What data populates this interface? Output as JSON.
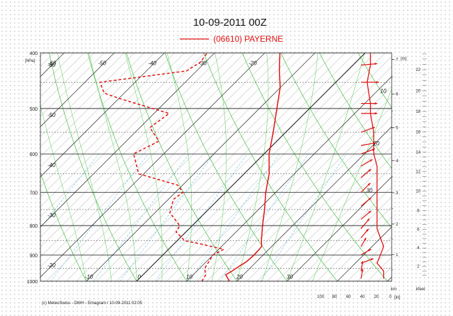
{
  "chart_data": {
    "type": "line",
    "title": "10-09-2011  00Z",
    "station_legend": "(06610)  PAYERNE",
    "copyright": "(c) MeteoSwiss - DWH - Emagram / 10-09-2011 02:05",
    "y_unit": "[hPa]",
    "pressure_ticks": [
      400,
      500,
      600,
      700,
      800,
      900,
      1000
    ],
    "temperature_labels": [
      -60,
      -50,
      -40,
      -30,
      -20,
      -10,
      0,
      10,
      20,
      30
    ],
    "temperature_ticks_bottom": [
      -10,
      0,
      10,
      20,
      30
    ],
    "height_unit_m": "[m]",
    "height_scale_km": [
      1,
      2,
      3,
      4,
      5,
      6,
      7
    ],
    "height_label_km": "km",
    "height_scale_kfeet": [
      2,
      4,
      6,
      8,
      10,
      12,
      14,
      16,
      18,
      20,
      22,
      24
    ],
    "height_label_kfeet": "kfeet",
    "wind_axis_labels": [
      100,
      80,
      60,
      40,
      20,
      0
    ],
    "wind_axis_unit": "[kt]",
    "wind_speed_labels": [
      10,
      20,
      30
    ],
    "xlim_C": [
      -30,
      35
    ],
    "ylim_hPa": [
      1000,
      400
    ],
    "series": [
      {
        "name": "Temperature",
        "color": "#e01010",
        "style": "solid",
        "points": [
          [
            1000,
            18.5
          ],
          [
            975,
            16.5
          ],
          [
            960,
            17.0
          ],
          [
            940,
            17.5
          ],
          [
            925,
            18.0
          ],
          [
            900,
            18.2
          ],
          [
            870,
            18.0
          ],
          [
            850,
            16.8
          ],
          [
            800,
            14.0
          ],
          [
            750,
            11.2
          ],
          [
            700,
            8.0
          ],
          [
            650,
            5.0
          ],
          [
            600,
            1.0
          ],
          [
            550,
            -2.5
          ],
          [
            500,
            -6.5
          ],
          [
            460,
            -10.0
          ],
          [
            430,
            -13.5
          ],
          [
            400,
            -17.0
          ]
        ]
      },
      {
        "name": "Dew point",
        "color": "#e01010",
        "style": "dashed",
        "points": [
          [
            1000,
            13.0
          ],
          [
            975,
            12.5
          ],
          [
            950,
            11.0
          ],
          [
            925,
            10.5
          ],
          [
            900,
            10.0
          ],
          [
            880,
            11.0
          ],
          [
            860,
            5.0
          ],
          [
            850,
            1.5
          ],
          [
            820,
            -2.0
          ],
          [
            800,
            -2.5
          ],
          [
            760,
            -7.0
          ],
          [
            720,
            -9.0
          ],
          [
            700,
            -8.5
          ],
          [
            680,
            -11.0
          ],
          [
            650,
            -21.0
          ],
          [
            600,
            -26.0
          ],
          [
            570,
            -23.5
          ],
          [
            540,
            -28.0
          ],
          [
            510,
            -27.0
          ],
          [
            480,
            -40.0
          ],
          [
            470,
            -44.0
          ],
          [
            450,
            -47.0
          ],
          [
            430,
            -32.0
          ],
          [
            415,
            -31.0
          ],
          [
            400,
            -31.5
          ]
        ]
      }
    ],
    "wind_barbs": [
      {
        "p": 400,
        "dir_deg": 265,
        "kt": 30
      },
      {
        "p": 420,
        "dir_deg": 265,
        "kt": 30
      },
      {
        "p": 450,
        "dir_deg": 270,
        "kt": 35
      },
      {
        "p": 490,
        "dir_deg": 270,
        "kt": 30
      },
      {
        "p": 510,
        "dir_deg": 270,
        "kt": 30
      },
      {
        "p": 550,
        "dir_deg": 250,
        "kt": 25
      },
      {
        "p": 580,
        "dir_deg": 260,
        "kt": 25
      },
      {
        "p": 600,
        "dir_deg": 250,
        "kt": 25
      },
      {
        "p": 630,
        "dir_deg": 240,
        "kt": 20
      },
      {
        "p": 660,
        "dir_deg": 230,
        "kt": 20
      },
      {
        "p": 700,
        "dir_deg": 225,
        "kt": 20
      },
      {
        "p": 740,
        "dir_deg": 230,
        "kt": 20
      },
      {
        "p": 780,
        "dir_deg": 230,
        "kt": 20
      },
      {
        "p": 810,
        "dir_deg": 220,
        "kt": 20
      },
      {
        "p": 840,
        "dir_deg": 220,
        "kt": 15
      },
      {
        "p": 870,
        "dir_deg": 210,
        "kt": 10
      },
      {
        "p": 900,
        "dir_deg": 240,
        "kt": 15
      },
      {
        "p": 930,
        "dir_deg": 250,
        "kt": 20
      },
      {
        "p": 960,
        "dir_deg": 190,
        "kt": 10
      },
      {
        "p": 990,
        "dir_deg": 190,
        "kt": 10
      }
    ],
    "grid": true,
    "colors": {
      "sounding": "#e01010",
      "isotherms": "#444444",
      "dry_adiabats": "#44bb44",
      "moist_adiabats": "#6ad06a",
      "mixing_ratio": "#66bbee",
      "isobars": "#333333",
      "hatch": "#999999"
    }
  }
}
